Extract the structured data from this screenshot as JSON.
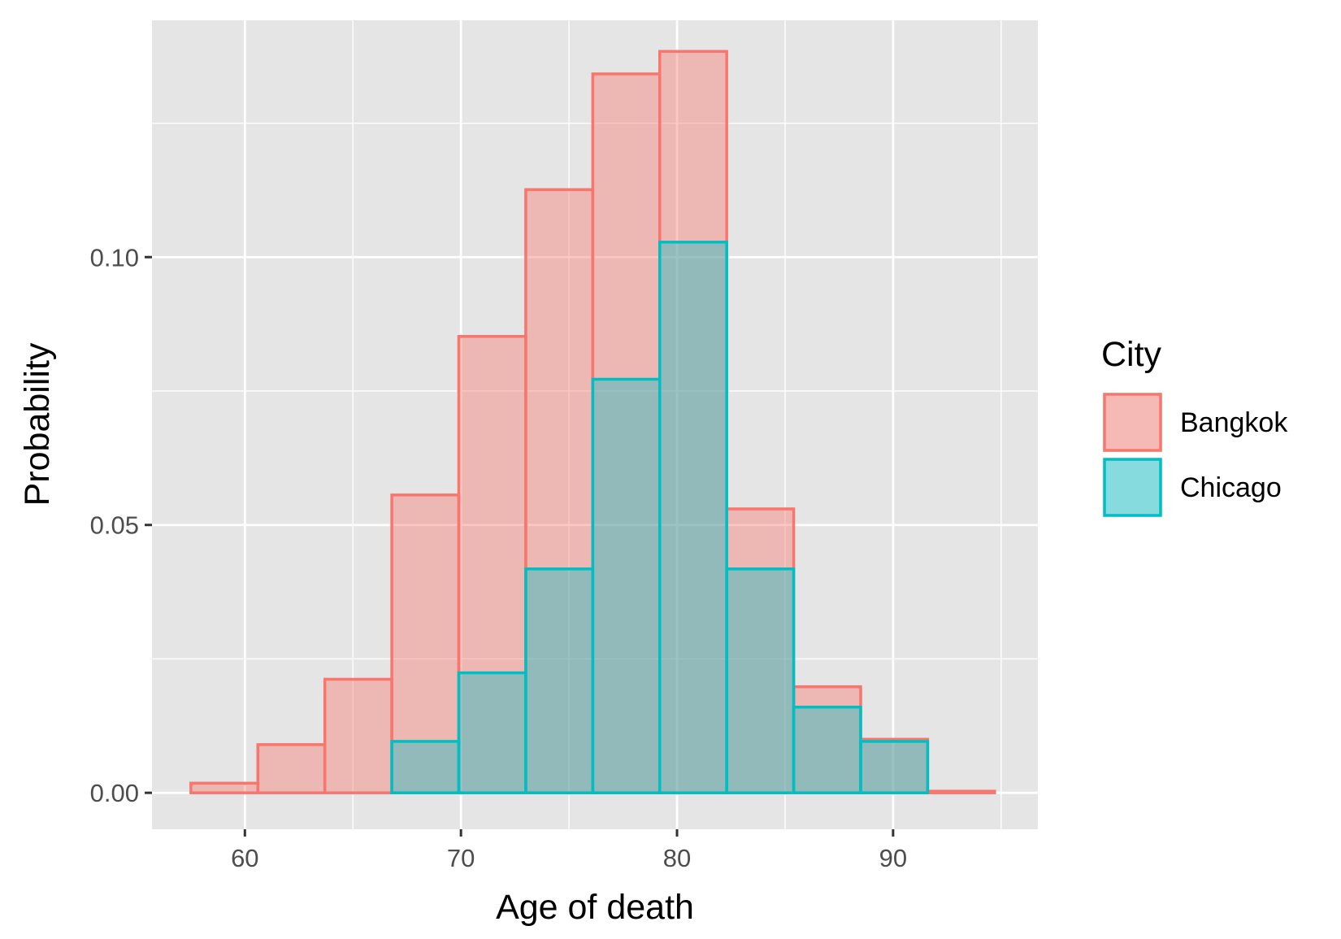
{
  "chart_data": {
    "type": "histogram",
    "xlabel": "Age of death",
    "ylabel": "Probability",
    "xlim": [
      55.7,
      96.7
    ],
    "ylim": [
      -0.0068,
      0.1442
    ],
    "x_ticks": [
      60,
      70,
      80,
      90
    ],
    "x_tick_labels": [
      "60",
      "70",
      "80",
      "90"
    ],
    "y_ticks": [
      0.0,
      0.05,
      0.1
    ],
    "y_tick_labels": [
      "0.00",
      "0.05",
      "0.10"
    ],
    "y_minor_ticks": [
      0.025,
      0.075,
      0.125
    ],
    "x_minor_ticks": [
      65,
      75,
      85,
      95
    ],
    "grid": true,
    "bin_edges": [
      57.5,
      60.6,
      63.7,
      66.8,
      69.9,
      73.0,
      76.1,
      79.2,
      82.3,
      85.4,
      88.5,
      91.6,
      94.7
    ],
    "legend": {
      "title": "City",
      "position": "right"
    },
    "series": [
      {
        "name": "Bangkok",
        "color": "#F8766D",
        "values": [
          0.0018,
          0.009,
          0.0212,
          0.0556,
          0.0852,
          0.1126,
          0.1342,
          0.1384,
          0.053,
          0.0198,
          0.01,
          0.0003
        ]
      },
      {
        "name": "Chicago",
        "color": "#00BFC4",
        "values": [
          0.0,
          0.0,
          0.0,
          0.0096,
          0.0224,
          0.0418,
          0.0772,
          0.1028,
          0.0418,
          0.016,
          0.0096,
          0.0
        ]
      }
    ]
  }
}
